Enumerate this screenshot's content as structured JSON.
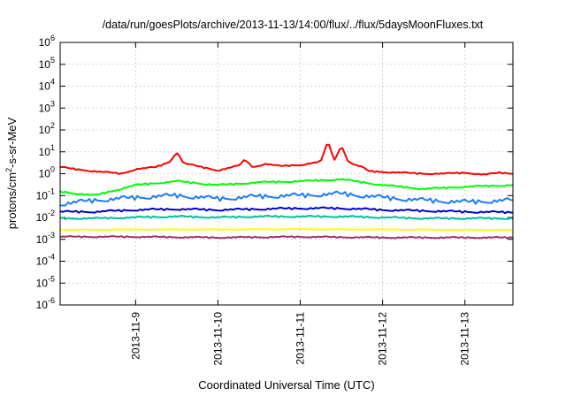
{
  "chart_data": {
    "type": "line",
    "title": "/data/run/goesPlots/archive/2013-11-13/14:00/flux/../flux/5daysMoonFluxes.txt",
    "xlabel": "Coordinated Universal Time (UTC)",
    "ylabel": "protons/cm²-s-sr-MeV",
    "ylabel_parts": {
      "pre": "protons/cm",
      "sup": "2",
      "post": "-s-sr-MeV"
    },
    "y_scale": "log",
    "ylim": [
      1e-06,
      1000000.0
    ],
    "xlim": [
      "2013-11-08T02:00",
      "2013-11-13T14:00"
    ],
    "grid": true,
    "y_ticks": [
      {
        "value": 1e-06,
        "base": "10",
        "exp": "-6"
      },
      {
        "value": 1e-05,
        "base": "10",
        "exp": "-5"
      },
      {
        "value": 0.0001,
        "base": "10",
        "exp": "-4"
      },
      {
        "value": 0.001,
        "base": "10",
        "exp": "-3"
      },
      {
        "value": 0.01,
        "base": "10",
        "exp": "-2"
      },
      {
        "value": 0.1,
        "base": "10",
        "exp": "-1"
      },
      {
        "value": 1,
        "base": "10",
        "exp": "0"
      },
      {
        "value": 10,
        "base": "10",
        "exp": "1"
      },
      {
        "value": 100,
        "base": "10",
        "exp": "2"
      },
      {
        "value": 1000,
        "base": "10",
        "exp": "3"
      },
      {
        "value": 10000,
        "base": "10",
        "exp": "4"
      },
      {
        "value": 100000,
        "base": "10",
        "exp": "5"
      },
      {
        "value": 1000000,
        "base": "10",
        "exp": "6"
      }
    ],
    "x_ticks": [
      "2013-11-9",
      "2013-11-10",
      "2013-11-11",
      "2013-11-12",
      "2013-11-13"
    ],
    "x_tick_values": [
      "2013-11-09T00:00",
      "2013-11-10T00:00",
      "2013-11-11T00:00",
      "2013-11-12T00:00",
      "2013-11-13T00:00"
    ],
    "series": [
      {
        "color": "#ff0000",
        "x": [
          "2013-11-08T02:00",
          "2013-11-08T08:00",
          "2013-11-08T14:00",
          "2013-11-08T20:00",
          "2013-11-09T00:00",
          "2013-11-09T06:00",
          "2013-11-09T10:00",
          "2013-11-09T12:00",
          "2013-11-09T14:00",
          "2013-11-09T18:00",
          "2013-11-10T00:00",
          "2013-11-10T06:00",
          "2013-11-10T08:00",
          "2013-11-10T10:00",
          "2013-11-10T14:00",
          "2013-11-10T18:00",
          "2013-11-11T00:00",
          "2013-11-11T06:00",
          "2013-11-11T08:00",
          "2013-11-11T10:00",
          "2013-11-11T12:00",
          "2013-11-11T14:00",
          "2013-11-11T16:00",
          "2013-11-11T18:00",
          "2013-11-11T20:00",
          "2013-11-12T00:00",
          "2013-11-12T06:00",
          "2013-11-12T12:00",
          "2013-11-12T18:00",
          "2013-11-13T00:00",
          "2013-11-13T06:00",
          "2013-11-13T10:00",
          "2013-11-13T14:00"
        ],
        "values": [
          2.0,
          1.5,
          1.2,
          1.0,
          1.6,
          2.0,
          3.5,
          10,
          3.0,
          2.2,
          1.4,
          2.3,
          4.5,
          2.0,
          2.8,
          2.2,
          2.5,
          3.5,
          30,
          4.0,
          20,
          3.5,
          2.5,
          2.0,
          1.3,
          1.2,
          1.1,
          1.0,
          1.0,
          1.1,
          0.9,
          1.1,
          1.0
        ]
      },
      {
        "color": "#00ff00",
        "x": [
          "2013-11-08T02:00",
          "2013-11-08T12:00",
          "2013-11-09T00:00",
          "2013-11-09T12:00",
          "2013-11-10T00:00",
          "2013-11-10T12:00",
          "2013-11-11T00:00",
          "2013-11-11T12:00",
          "2013-11-12T00:00",
          "2013-11-12T12:00",
          "2013-11-13T00:00",
          "2013-11-13T14:00"
        ],
        "values": [
          0.15,
          0.1,
          0.3,
          0.45,
          0.3,
          0.4,
          0.45,
          0.55,
          0.3,
          0.2,
          0.25,
          0.3
        ]
      },
      {
        "color": "#1e7bff",
        "x": [
          "2013-11-08T02:00",
          "2013-11-08T12:00",
          "2013-11-09T00:00",
          "2013-11-09T12:00",
          "2013-11-10T00:00",
          "2013-11-10T12:00",
          "2013-11-11T00:00",
          "2013-11-11T12:00",
          "2013-11-12T00:00",
          "2013-11-12T12:00",
          "2013-11-13T00:00",
          "2013-11-13T14:00"
        ],
        "values": [
          0.04,
          0.06,
          0.08,
          0.1,
          0.07,
          0.09,
          0.1,
          0.12,
          0.08,
          0.06,
          0.05,
          0.06
        ]
      },
      {
        "color": "#0000cc",
        "x": [
          "2013-11-08T02:00",
          "2013-11-08T12:00",
          "2013-11-09T00:00",
          "2013-11-09T12:00",
          "2013-11-10T00:00",
          "2013-11-10T12:00",
          "2013-11-11T00:00",
          "2013-11-11T12:00",
          "2013-11-12T00:00",
          "2013-11-12T12:00",
          "2013-11-13T00:00",
          "2013-11-13T14:00"
        ],
        "values": [
          0.018,
          0.018,
          0.022,
          0.024,
          0.022,
          0.024,
          0.026,
          0.026,
          0.022,
          0.02,
          0.018,
          0.017
        ]
      },
      {
        "color": "#00c0a0",
        "x": [
          "2013-11-08T02:00",
          "2013-11-08T12:00",
          "2013-11-09T00:00",
          "2013-11-09T12:00",
          "2013-11-10T00:00",
          "2013-11-10T12:00",
          "2013-11-11T00:00",
          "2013-11-11T12:00",
          "2013-11-12T00:00",
          "2013-11-12T12:00",
          "2013-11-13T00:00",
          "2013-11-13T14:00"
        ],
        "values": [
          0.009,
          0.009,
          0.01,
          0.011,
          0.01,
          0.011,
          0.011,
          0.011,
          0.01,
          0.009,
          0.009,
          0.009
        ]
      },
      {
        "color": "#ffff00",
        "x": [
          "2013-11-08T02:00",
          "2013-11-09T00:00",
          "2013-11-10T00:00",
          "2013-11-11T00:00",
          "2013-11-12T00:00",
          "2013-11-13T00:00",
          "2013-11-13T14:00"
        ],
        "values": [
          0.0027,
          0.0028,
          0.0028,
          0.0029,
          0.0028,
          0.0027,
          0.0027
        ]
      },
      {
        "color": "#a0306a",
        "x": [
          "2013-11-08T02:00",
          "2013-11-09T00:00",
          "2013-11-10T00:00",
          "2013-11-11T00:00",
          "2013-11-12T00:00",
          "2013-11-13T00:00",
          "2013-11-13T14:00"
        ],
        "values": [
          0.0013,
          0.0013,
          0.0012,
          0.0013,
          0.0012,
          0.0012,
          0.0012
        ]
      }
    ]
  }
}
